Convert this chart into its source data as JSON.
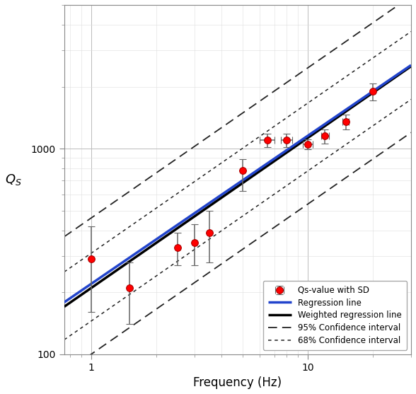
{
  "title": "",
  "xlabel": "Frequency (Hz)",
  "ylabel": "Q_S",
  "xlim": [
    0.75,
    30
  ],
  "ylim": [
    100,
    5000
  ],
  "background": "#ffffff",
  "data_points": {
    "freq": [
      1.0,
      1.5,
      2.5,
      3.0,
      3.5,
      5.0,
      6.5,
      8.0,
      10.0,
      12.0,
      15.0,
      20.0
    ],
    "Qs": [
      290,
      210,
      330,
      350,
      390,
      780,
      1100,
      1100,
      1050,
      1150,
      1350,
      1900
    ],
    "Qs_err_lo": [
      130,
      70,
      60,
      80,
      110,
      160,
      80,
      80,
      60,
      90,
      110,
      180
    ],
    "Qs_err_hi": [
      130,
      70,
      60,
      80,
      110,
      110,
      80,
      80,
      60,
      90,
      110,
      180
    ],
    "freq_err_lo": [
      0.0,
      0.0,
      0.0,
      0.0,
      0.0,
      0.0,
      0.5,
      0.5,
      0.5,
      0.5,
      0.5,
      0.0
    ],
    "freq_err_hi": [
      0.0,
      0.0,
      0.0,
      0.0,
      0.0,
      0.0,
      0.5,
      0.5,
      0.5,
      0.5,
      0.5,
      0.0
    ]
  },
  "regression_line": {
    "a": 220,
    "b": 0.72,
    "color": "#2244cc",
    "lw": 2.5
  },
  "weighted_regression_line": {
    "a": 210,
    "b": 0.73,
    "color": "#000000",
    "lw": 2.5
  },
  "ci95": {
    "a_lo": 100,
    "b_lo": 0.73,
    "a_hi": 460,
    "b_hi": 0.73,
    "color": "#222222",
    "lw": 1.3,
    "dash_pattern": [
      7,
      4
    ]
  },
  "ci68": {
    "a_lo": 145,
    "b_lo": 0.73,
    "a_hi": 310,
    "b_hi": 0.73,
    "color": "#222222",
    "lw": 1.1,
    "dash_pattern": [
      3,
      3
    ]
  },
  "marker_color": "#ff0000",
  "marker_edge_color": "#aa0000",
  "marker_size": 7,
  "legend_loc": "lower right"
}
